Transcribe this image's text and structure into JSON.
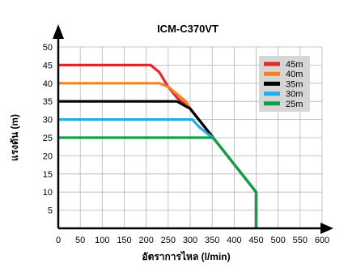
{
  "chart_data": {
    "type": "line",
    "title": "ICM-C370VT",
    "xlabel": "อัตราการไหล (l/min)",
    "ylabel": "แรงดัน (m)",
    "xlim": [
      0,
      600
    ],
    "ylim": [
      0,
      50
    ],
    "xticks": [
      0,
      50,
      100,
      150,
      200,
      250,
      300,
      350,
      400,
      450,
      500,
      550,
      600
    ],
    "yticks": [
      5,
      10,
      15,
      20,
      25,
      30,
      35,
      40,
      45,
      50
    ],
    "grid": true,
    "legend_position": "top-right",
    "series": [
      {
        "name": "45m",
        "color": "#e8262a",
        "points": [
          [
            0,
            45
          ],
          [
            210,
            45
          ],
          [
            230,
            43
          ],
          [
            250,
            39
          ],
          [
            270,
            36
          ],
          [
            280,
            35
          ],
          [
            300,
            33
          ],
          [
            450,
            10
          ],
          [
            450,
            0
          ]
        ]
      },
      {
        "name": "40m",
        "color": "#f5821f",
        "points": [
          [
            0,
            40
          ],
          [
            230,
            40
          ],
          [
            250,
            39
          ],
          [
            270,
            37
          ],
          [
            290,
            35
          ],
          [
            300,
            33
          ],
          [
            450,
            10
          ],
          [
            450,
            0
          ]
        ]
      },
      {
        "name": "35m",
        "color": "#000000",
        "points": [
          [
            0,
            35
          ],
          [
            270,
            35
          ],
          [
            285,
            34
          ],
          [
            300,
            33
          ],
          [
            450,
            10
          ],
          [
            450,
            0
          ]
        ]
      },
      {
        "name": "30m",
        "color": "#20aee5",
        "points": [
          [
            0,
            30
          ],
          [
            305,
            30
          ],
          [
            320,
            28
          ],
          [
            340,
            26
          ],
          [
            352,
            25
          ],
          [
            450,
            10
          ],
          [
            450,
            0
          ]
        ]
      },
      {
        "name": "25m",
        "color": "#13a04b",
        "points": [
          [
            0,
            25
          ],
          [
            340,
            25
          ],
          [
            352,
            25
          ],
          [
            450,
            10
          ],
          [
            450,
            0
          ]
        ]
      }
    ]
  }
}
